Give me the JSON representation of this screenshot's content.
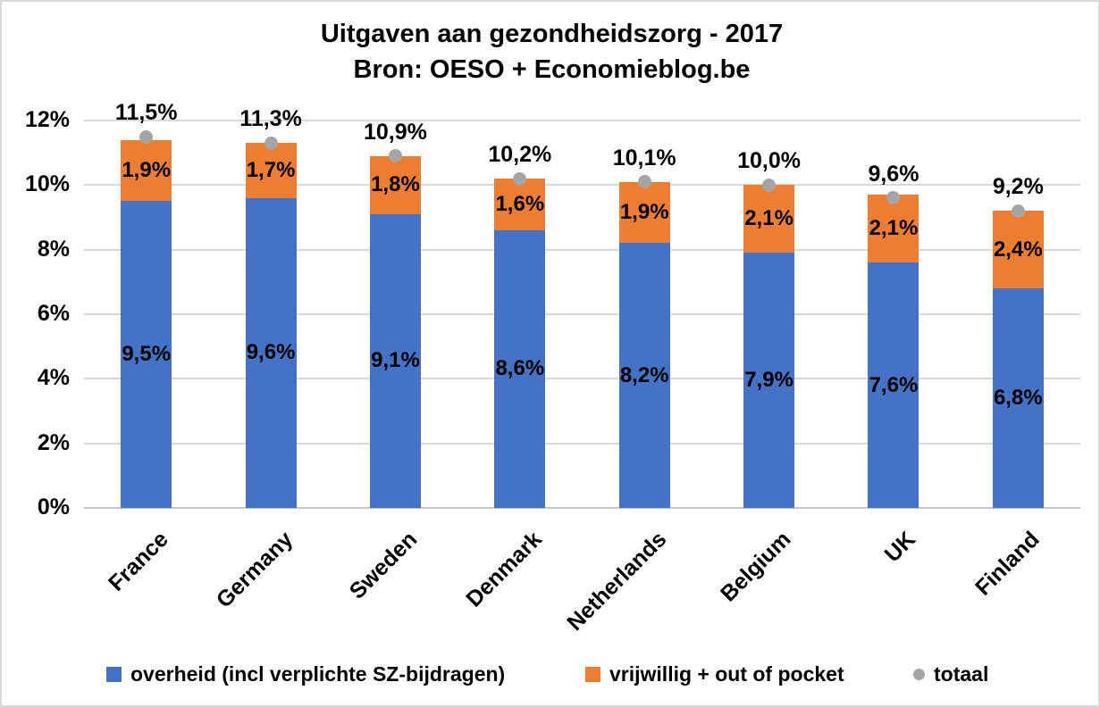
{
  "title": {
    "line1": "Uitgaven aan gezondheidszorg - 2017",
    "line2": "Bron: OESO + Economieblog.be"
  },
  "colors": {
    "government_blue": "#4472C4",
    "voluntary_orange": "#ED7D31",
    "total_gray": "#A5A5A5",
    "gridline": "#d9d9d9",
    "text": "#000000"
  },
  "chart_data": {
    "type": "bar",
    "stacked": true,
    "title": "Uitgaven aan gezondheidszorg - 2017",
    "subtitle": "Bron: OESO + Economieblog.be",
    "categories": [
      "France",
      "Germany",
      "Sweden",
      "Denmark",
      "Netherlands",
      "Belgium",
      "UK",
      "Finland"
    ],
    "series": [
      {
        "name": "overheid (incl verplichte SZ-bijdragen)",
        "type": "bar",
        "color": "#4472C4",
        "values": [
          9.5,
          9.6,
          9.1,
          8.6,
          8.2,
          7.9,
          7.6,
          6.8
        ],
        "labels": [
          "9,5%",
          "9,6%",
          "9,1%",
          "8,6%",
          "8,2%",
          "7,9%",
          "7,6%",
          "6,8%"
        ]
      },
      {
        "name": "vrijwillig + out of pocket",
        "type": "bar",
        "color": "#ED7D31",
        "values": [
          1.9,
          1.7,
          1.8,
          1.6,
          1.9,
          2.1,
          2.1,
          2.4
        ],
        "labels": [
          "1,9%",
          "1,7%",
          "1,8%",
          "1,6%",
          "1,9%",
          "2,1%",
          "2,1%",
          "2,4%"
        ]
      },
      {
        "name": "totaal",
        "type": "scatter",
        "color": "#A5A5A5",
        "values": [
          11.5,
          11.3,
          10.9,
          10.2,
          10.1,
          10.0,
          9.6,
          9.2
        ],
        "labels": [
          "11,5%",
          "11,3%",
          "10,9%",
          "10,2%",
          "10,1%",
          "10,0%",
          "9,6%",
          "9,2%"
        ]
      }
    ],
    "y_axis": {
      "min": 0,
      "max": 12,
      "step": 2,
      "tick_labels": [
        "0%",
        "2%",
        "4%",
        "6%",
        "8%",
        "10%",
        "12%"
      ]
    },
    "grid": true,
    "legend_position": "bottom"
  }
}
